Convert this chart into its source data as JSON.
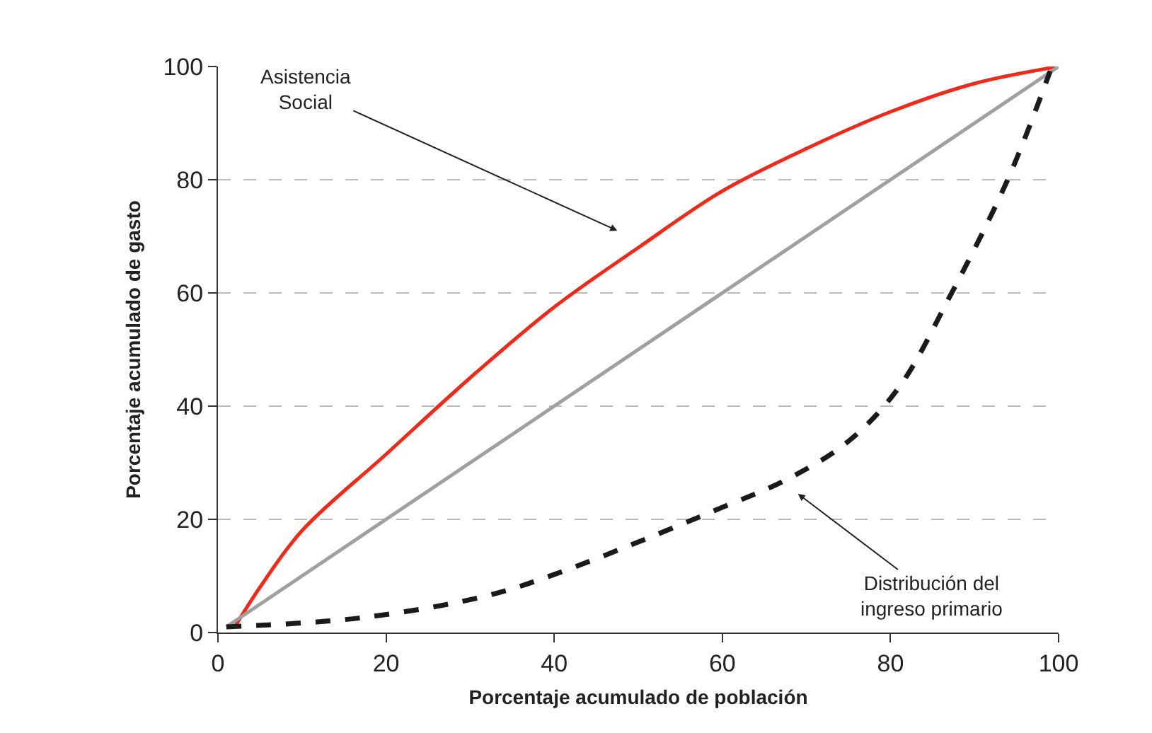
{
  "chart_data": {
    "type": "line",
    "xlabel": "Porcentaje acumulado de población",
    "ylabel": "Porcentaje acumulado de gasto",
    "xlim": [
      0,
      100
    ],
    "ylim": [
      0,
      100
    ],
    "xticks": [
      0,
      20,
      40,
      60,
      80,
      100
    ],
    "yticks": [
      0,
      20,
      40,
      60,
      80,
      100
    ],
    "grid": "y",
    "marker": "none",
    "series": [
      {
        "color": "#ee2a1b",
        "line_style": "solid",
        "x": [
          2,
          5,
          10,
          20,
          30,
          40,
          50,
          60,
          70,
          80,
          90,
          100
        ],
        "values": [
          1,
          8,
          18,
          31.5,
          45,
          57.5,
          68,
          78,
          85.5,
          92,
          97,
          100
        ]
      },
      {
        "color": "#a0a0a0",
        "line_style": "solid",
        "x": [
          1,
          100
        ],
        "values": [
          1,
          100
        ]
      },
      {
        "color": "#1a1a1a",
        "line_style": "dashed",
        "x": [
          1,
          17,
          32,
          41,
          59,
          68,
          75,
          81,
          87,
          94,
          99
        ],
        "values": [
          1,
          2.6,
          6.5,
          10.8,
          21.5,
          27.3,
          33.8,
          43.3,
          59.2,
          80.2,
          99.2
        ]
      }
    ],
    "annotations": [
      "Asistencia\nSocial",
      "Distribución del\ningreso primario"
    ]
  }
}
